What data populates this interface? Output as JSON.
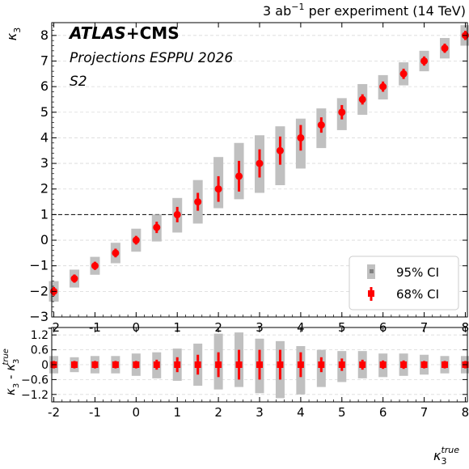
{
  "header": {
    "luminosity_prefix": "3 ab",
    "luminosity_exp": "−1",
    "luminosity_suffix": " per experiment (14 TeV)"
  },
  "labels": {
    "experiment_a": "ATLAS",
    "experiment_plus": "+",
    "experiment_b": "CMS",
    "projection": "Projections ESPPU 2026",
    "scenario": "S2"
  },
  "legend": {
    "ci95": "95% CI",
    "ci68": "68% CI"
  },
  "colors": {
    "ci95_fill": "#c0c0c0",
    "ci95_marker": "#808080",
    "ci68": "#ff0000",
    "grid": "#d9d9d9"
  },
  "chart_data": [
    {
      "type": "scatter",
      "panel": "main",
      "xlabel_base": "κ",
      "xlabel_sub": "3",
      "xlabel_sup": "true",
      "ylabel_base": "κ",
      "ylabel_sub": "3",
      "xlim": [
        -2.05,
        8.05
      ],
      "ylim": [
        -3,
        8.5
      ],
      "xticks": [
        -2,
        -1,
        0,
        1,
        2,
        3,
        4,
        5,
        6,
        7,
        8
      ],
      "xtick_labels": [
        "-2",
        "-1",
        "0",
        "1",
        "2",
        "3",
        "4",
        "5",
        "6",
        "7",
        "8"
      ],
      "yticks": [
        -3,
        -2,
        -1,
        0,
        1,
        2,
        3,
        4,
        5,
        6,
        7,
        8
      ],
      "ytick_labels": [
        "−3",
        "−2",
        "−1",
        "0",
        "1",
        "2",
        "3",
        "4",
        "5",
        "6",
        "7",
        "8"
      ],
      "grid": true,
      "reference_line": 1,
      "legend_position": "bottom-right",
      "x": [
        -2.0,
        -1.5,
        -1.0,
        -0.5,
        0.0,
        0.5,
        1.0,
        1.5,
        2.0,
        2.5,
        3.0,
        3.5,
        4.0,
        4.5,
        5.0,
        5.5,
        6.0,
        6.5,
        7.0,
        7.5,
        8.0
      ],
      "y": [
        -2.0,
        -1.5,
        -1.0,
        -0.5,
        0.0,
        0.5,
        1.0,
        1.5,
        2.0,
        2.5,
        3.0,
        3.5,
        4.0,
        4.5,
        5.0,
        5.5,
        6.0,
        6.5,
        7.0,
        7.5,
        8.0
      ],
      "ci68_lo": [
        -2.17,
        -1.66,
        -1.16,
        -0.67,
        -0.17,
        0.28,
        0.7,
        1.15,
        1.5,
        1.9,
        2.45,
        2.95,
        3.5,
        4.2,
        4.72,
        5.3,
        5.8,
        6.3,
        6.82,
        7.32,
        7.82
      ],
      "ci68_hi": [
        -1.83,
        -1.34,
        -0.84,
        -0.33,
        0.17,
        0.72,
        1.3,
        1.85,
        2.5,
        3.1,
        3.55,
        4.05,
        4.5,
        4.8,
        5.28,
        5.7,
        6.2,
        6.7,
        7.18,
        7.68,
        8.18
      ],
      "ci95_lo": [
        -2.4,
        -1.85,
        -1.35,
        -0.9,
        -0.45,
        -0.05,
        0.3,
        0.65,
        1.25,
        1.6,
        1.85,
        2.15,
        2.8,
        3.6,
        4.3,
        4.9,
        5.5,
        6.05,
        6.6,
        7.1,
        7.6
      ],
      "ci95_hi": [
        -1.6,
        -1.15,
        -0.65,
        -0.1,
        0.45,
        1.0,
        1.65,
        2.35,
        3.25,
        3.8,
        4.1,
        4.45,
        4.75,
        5.15,
        5.55,
        6.1,
        6.45,
        6.95,
        7.4,
        7.9,
        8.4
      ]
    },
    {
      "type": "scatter",
      "panel": "residual",
      "ylabel": "κ₃ - κ₃^true",
      "ylabel_base": "κ",
      "ylabel_sub": "3",
      "ylabel_mid": " - ",
      "ylabel_sup": "true",
      "xlim": [
        -2.05,
        8.05
      ],
      "ylim": [
        -1.5,
        1.5
      ],
      "yticks": [
        -1.2,
        -0.6,
        0,
        0.6,
        1.2
      ],
      "ytick_labels": [
        "−1.2",
        "−0.6",
        "0",
        "0.6",
        "1.2"
      ],
      "grid": true,
      "x": [
        -2.0,
        -1.5,
        -1.0,
        -0.5,
        0.0,
        0.5,
        1.0,
        1.5,
        2.0,
        2.5,
        3.0,
        3.5,
        4.0,
        4.5,
        5.0,
        5.5,
        6.0,
        6.5,
        7.0,
        7.5,
        8.0
      ],
      "y": [
        0,
        0,
        0,
        0,
        0,
        0,
        0,
        0,
        0,
        0,
        0,
        0,
        0,
        0,
        0,
        0,
        0,
        0,
        0,
        0,
        0
      ],
      "ci68_lo": [
        -0.15,
        -0.15,
        -0.15,
        -0.15,
        -0.15,
        -0.2,
        -0.3,
        -0.4,
        -0.5,
        -0.6,
        -0.6,
        -0.6,
        -0.5,
        -0.3,
        -0.25,
        -0.2,
        -0.17,
        -0.17,
        -0.15,
        -0.15,
        -0.15
      ],
      "ci68_hi": [
        0.15,
        0.15,
        0.15,
        0.15,
        0.15,
        0.2,
        0.3,
        0.4,
        0.5,
        0.6,
        0.6,
        0.6,
        0.5,
        0.3,
        0.25,
        0.2,
        0.17,
        0.17,
        0.15,
        0.15,
        0.15
      ],
      "ci95_lo": [
        -0.35,
        -0.3,
        -0.35,
        -0.35,
        -0.45,
        -0.55,
        -0.65,
        -0.85,
        -1.0,
        -0.9,
        -1.15,
        -1.35,
        -1.2,
        -0.9,
        -0.7,
        -0.55,
        -0.5,
        -0.45,
        -0.4,
        -0.35,
        -0.35
      ],
      "ci95_hi": [
        0.35,
        0.3,
        0.35,
        0.35,
        0.45,
        0.5,
        0.65,
        0.85,
        1.25,
        1.3,
        1.05,
        0.95,
        0.75,
        0.6,
        0.55,
        0.55,
        0.45,
        0.45,
        0.4,
        0.35,
        0.35
      ]
    }
  ]
}
